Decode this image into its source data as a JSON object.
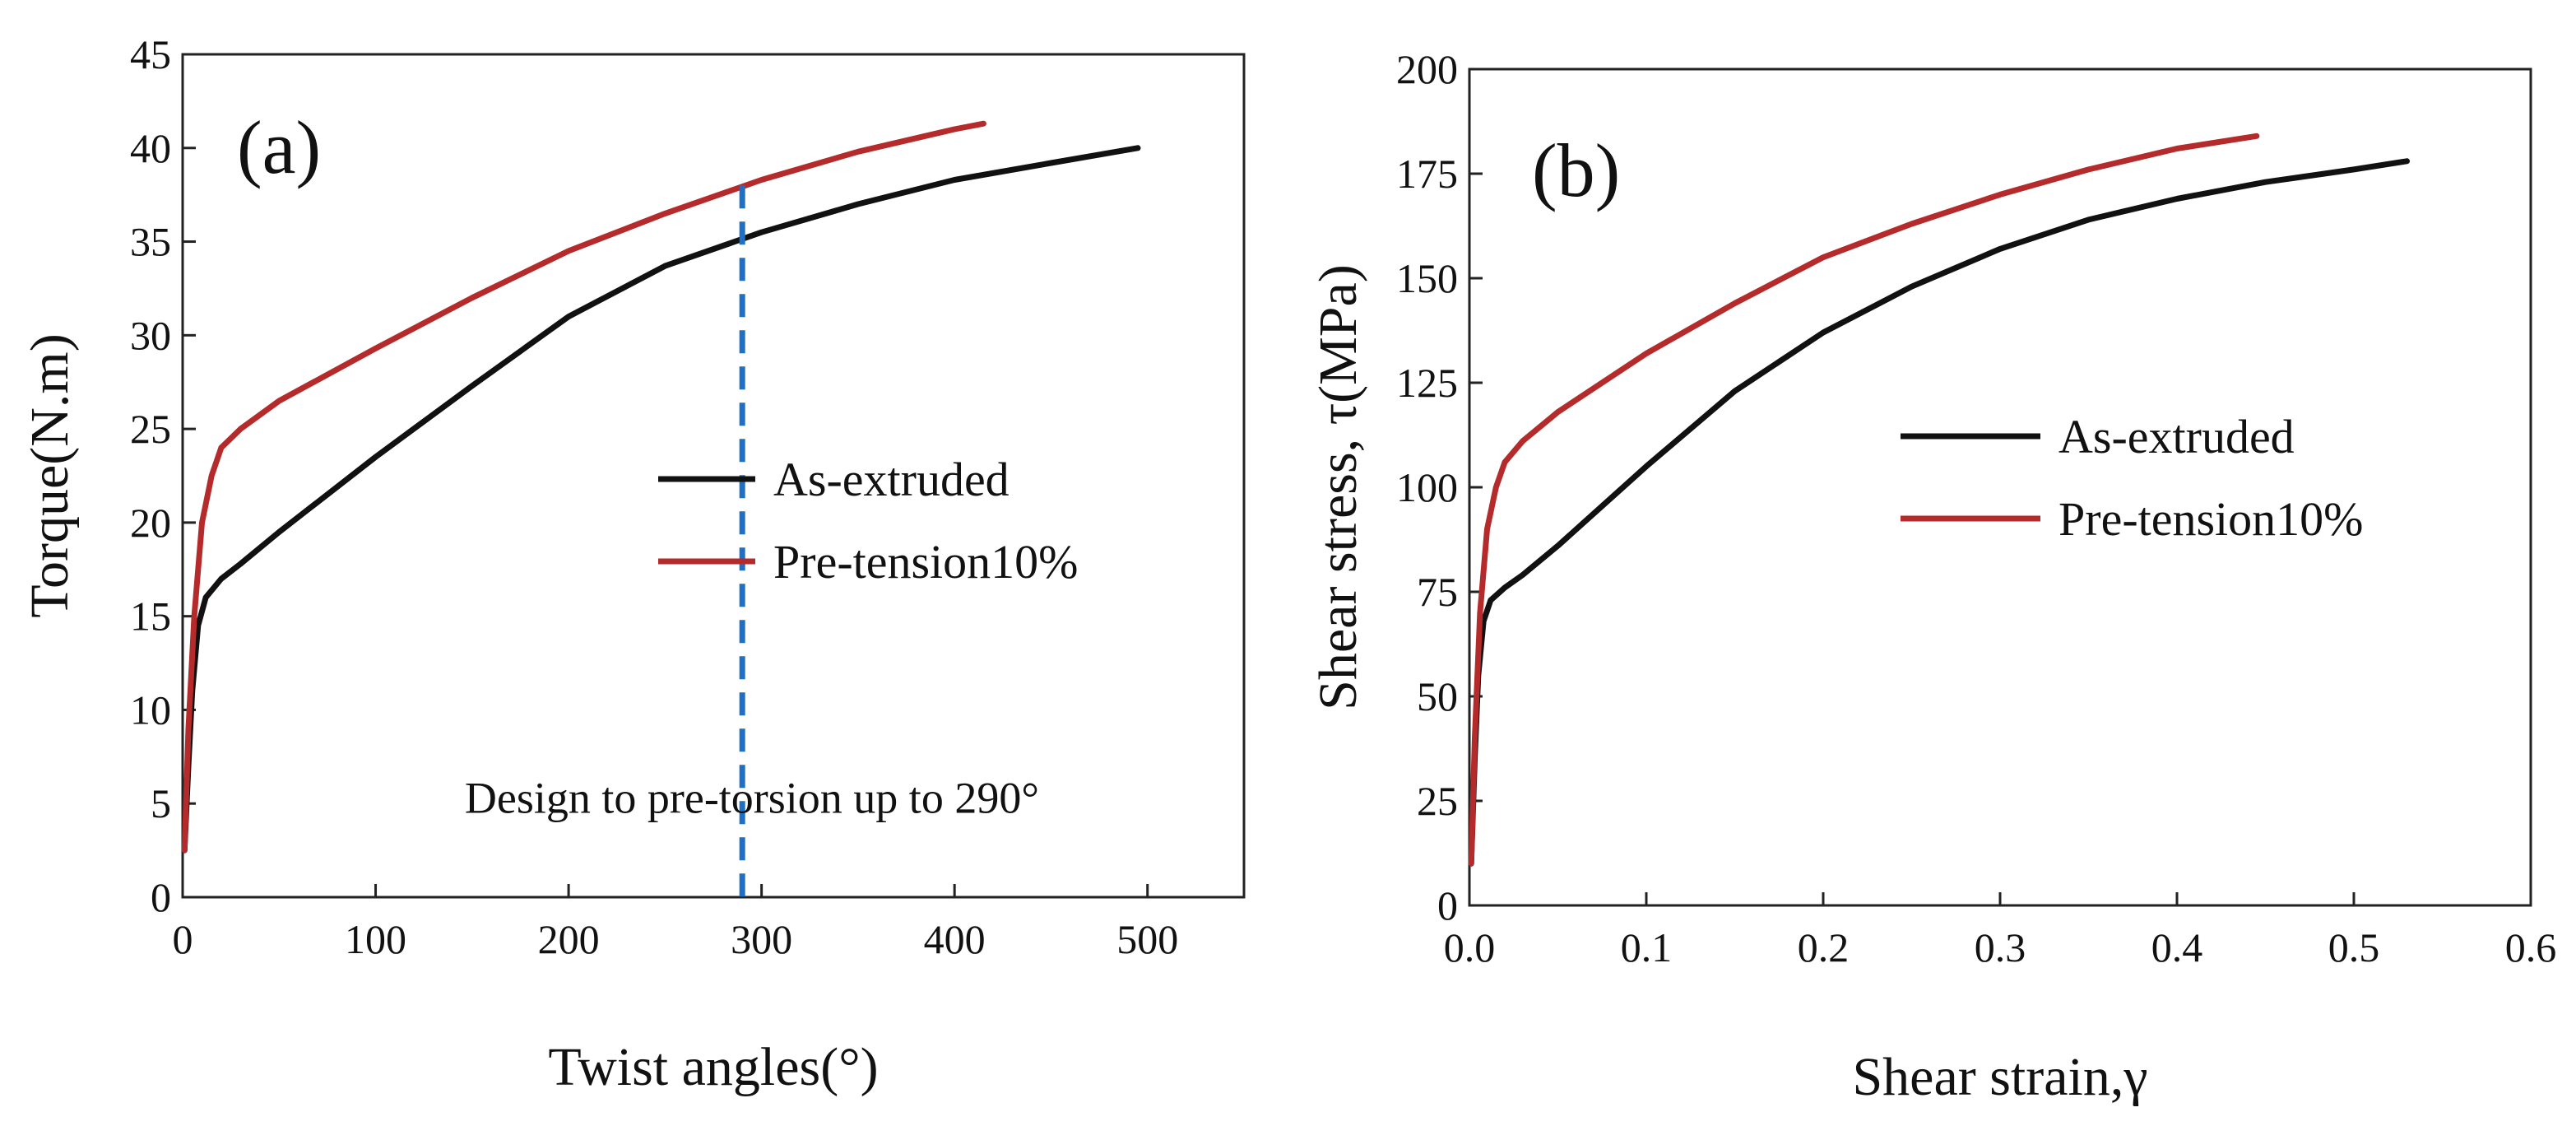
{
  "chart_data": [
    {
      "type": "line",
      "panel_label": "(a)",
      "xlabel": "Twist angles(°)",
      "ylabel": "Torque(N.m)",
      "xlim": [
        0,
        550
      ],
      "ylim": [
        0,
        45
      ],
      "xticks": [
        0,
        100,
        200,
        300,
        400,
        500
      ],
      "yticks": [
        0,
        5,
        10,
        15,
        20,
        25,
        30,
        35,
        40,
        45
      ],
      "legend": {
        "position": "center-right",
        "entries": [
          "As-extruded",
          "Pre-tension10%"
        ]
      },
      "series": [
        {
          "name": "As-extruded",
          "color": "#111111",
          "x": [
            1,
            3,
            5,
            8,
            12,
            20,
            30,
            50,
            100,
            150,
            200,
            250,
            300,
            350,
            400,
            450,
            495
          ],
          "y": [
            2.5,
            7,
            11,
            14.5,
            16,
            17,
            17.8,
            19.5,
            23.5,
            27.3,
            31,
            33.7,
            35.5,
            37,
            38.3,
            39.2,
            40
          ]
        },
        {
          "name": "Pre-tension10%",
          "color": "#b52a2a",
          "x": [
            1,
            3,
            6,
            10,
            15,
            20,
            30,
            50,
            100,
            150,
            200,
            250,
            300,
            350,
            400,
            415
          ],
          "y": [
            2.5,
            9,
            15,
            20,
            22.5,
            24,
            25,
            26.5,
            29.3,
            32,
            34.5,
            36.5,
            38.3,
            39.8,
            41,
            41.3
          ]
        }
      ],
      "annotations": [
        {
          "type": "vline",
          "x": 290,
          "y_top": 38,
          "color": "#1f6fc4",
          "style": "dashed"
        },
        {
          "type": "text",
          "text": "Design to pre-torsion up to 290°",
          "x": 295,
          "y": 4.5
        }
      ]
    },
    {
      "type": "line",
      "panel_label": "(b)",
      "xlabel": "Shear strain,γ",
      "ylabel": "Shear stress, τ(MPa)",
      "xlim": [
        0,
        0.6
      ],
      "ylim": [
        0,
        200
      ],
      "xticks": [
        0.0,
        0.1,
        0.2,
        0.3,
        0.4,
        0.5,
        0.6
      ],
      "xtick_labels": [
        "0.0",
        "0.1",
        "0.2",
        "0.3",
        "0.4",
        "0.5",
        "0.6"
      ],
      "yticks": [
        0,
        25,
        50,
        75,
        100,
        125,
        150,
        175,
        200
      ],
      "legend": {
        "position": "center-right",
        "entries": [
          "As-extruded",
          "Pre-tension10%"
        ]
      },
      "series": [
        {
          "name": "As-extruded",
          "color": "#111111",
          "x": [
            0.001,
            0.003,
            0.005,
            0.008,
            0.012,
            0.02,
            0.03,
            0.05,
            0.1,
            0.15,
            0.2,
            0.25,
            0.3,
            0.35,
            0.4,
            0.45,
            0.5,
            0.53
          ],
          "y": [
            10,
            35,
            55,
            68,
            73,
            76,
            79,
            86,
            105,
            123,
            137,
            148,
            157,
            164,
            169,
            173,
            176,
            178
          ]
        },
        {
          "name": "Pre-tension10%",
          "color": "#b52a2a",
          "x": [
            0.001,
            0.003,
            0.006,
            0.01,
            0.015,
            0.02,
            0.03,
            0.05,
            0.1,
            0.15,
            0.2,
            0.25,
            0.3,
            0.35,
            0.4,
            0.445
          ],
          "y": [
            10,
            40,
            70,
            90,
            100,
            106,
            111,
            118,
            132,
            144,
            155,
            163,
            170,
            176,
            181,
            184
          ]
        }
      ]
    }
  ]
}
